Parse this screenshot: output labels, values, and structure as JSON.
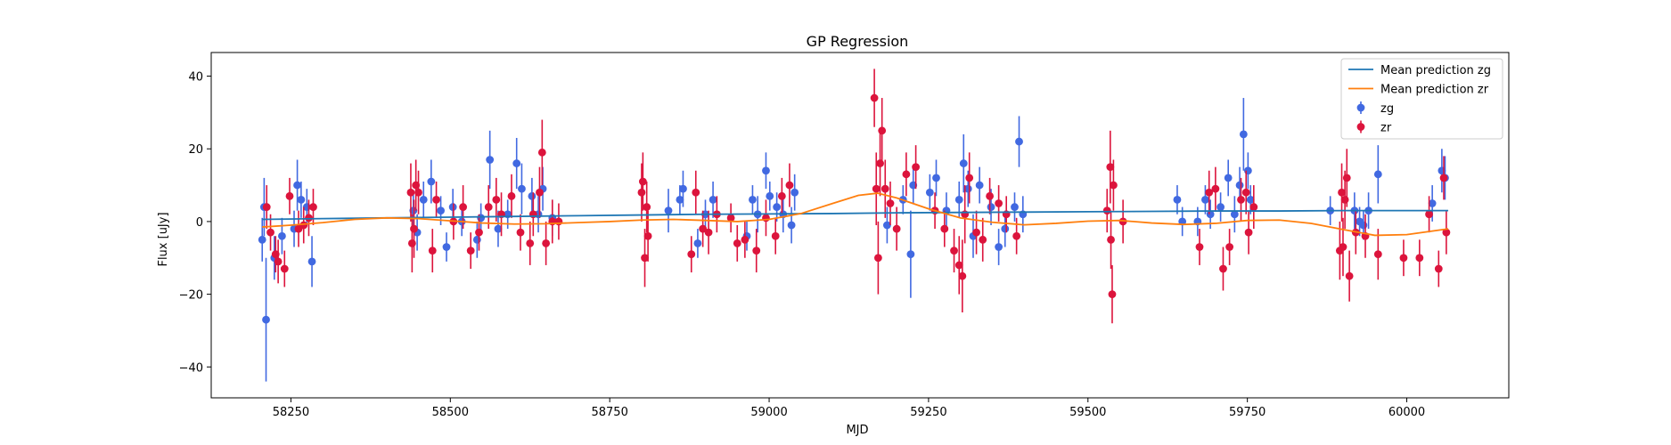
{
  "chart_data": {
    "type": "scatter",
    "title": "GP Regression",
    "xlabel": "MJD",
    "ylabel": "Flux [uJy]",
    "xlim": [
      58125,
      60160
    ],
    "ylim": [
      -48.5,
      46.5
    ],
    "xticks": [
      58250,
      58500,
      58750,
      59000,
      59250,
      59500,
      59750,
      60000
    ],
    "yticks": [
      -40,
      -20,
      0,
      20,
      40
    ],
    "legend_position": "top-right",
    "legend": [
      {
        "label": "Mean prediction zg",
        "kind": "line",
        "color": "#1f77b4"
      },
      {
        "label": "Mean prediction zr",
        "kind": "line",
        "color": "#ff7f0e"
      },
      {
        "label": "zg",
        "kind": "errorbar",
        "color": "#4169e1"
      },
      {
        "label": "zr",
        "kind": "errorbar",
        "color": "#dc143c"
      }
    ],
    "mean_zg": {
      "name": "Mean prediction zg",
      "color": "#1f77b4",
      "x": [
        58205,
        58300,
        58400,
        58500,
        58600,
        58700,
        58800,
        58900,
        59000,
        59100,
        59200,
        59300,
        59400,
        59500,
        59600,
        59700,
        59800,
        59900,
        60000,
        60065
      ],
      "y": [
        0.6,
        0.8,
        1.0,
        1.2,
        1.4,
        1.6,
        1.8,
        2.0,
        2.1,
        2.2,
        2.4,
        2.5,
        2.6,
        2.7,
        2.8,
        2.9,
        2.9,
        3.0,
        3.0,
        3.0
      ]
    },
    "mean_zr": {
      "name": "Mean prediction zr",
      "color": "#ff7f0e",
      "x": [
        58205,
        58250,
        58300,
        58350,
        58400,
        58450,
        58500,
        58550,
        58600,
        58650,
        58700,
        58750,
        58800,
        58850,
        58900,
        58950,
        59000,
        59050,
        59100,
        59140,
        59170,
        59200,
        59250,
        59300,
        59350,
        59400,
        59450,
        59500,
        59550,
        59600,
        59650,
        59700,
        59750,
        59800,
        59850,
        59900,
        59950,
        60000,
        60065
      ],
      "y": [
        -1.5,
        -1.0,
        -0.3,
        0.6,
        1.0,
        0.8,
        0.2,
        -0.4,
        -0.7,
        -0.6,
        -0.3,
        0.0,
        0.4,
        0.6,
        0.3,
        0.0,
        0.6,
        2.2,
        5.0,
        7.2,
        7.8,
        6.5,
        3.5,
        1.0,
        -0.2,
        -0.9,
        -0.5,
        0.1,
        0.3,
        -0.4,
        -0.8,
        -0.5,
        0.3,
        0.4,
        -0.5,
        -2.2,
        -3.8,
        -3.6,
        -2.0
      ]
    },
    "series": [
      {
        "name": "zg",
        "color": "#4169e1",
        "points": [
          [
            58205,
            -5,
            6
          ],
          [
            58208,
            4,
            8
          ],
          [
            58211,
            -27,
            17
          ],
          [
            58224,
            -10,
            6
          ],
          [
            58236,
            -4,
            5
          ],
          [
            58255,
            -2,
            5
          ],
          [
            58260,
            10,
            7
          ],
          [
            58266,
            6,
            5
          ],
          [
            58275,
            4,
            5
          ],
          [
            58283,
            -11,
            7
          ],
          [
            58442,
            3,
            5
          ],
          [
            58448,
            -3,
            5
          ],
          [
            58458,
            6,
            5
          ],
          [
            58470,
            11,
            6
          ],
          [
            58485,
            3,
            4
          ],
          [
            58494,
            -7,
            4
          ],
          [
            58504,
            4,
            5
          ],
          [
            58518,
            0,
            4
          ],
          [
            58542,
            -5,
            5
          ],
          [
            58548,
            1,
            4
          ],
          [
            58562,
            17,
            8
          ],
          [
            58575,
            -2,
            5
          ],
          [
            58590,
            2,
            4
          ],
          [
            58604,
            16,
            7
          ],
          [
            58612,
            9,
            7
          ],
          [
            58628,
            7,
            5
          ],
          [
            58638,
            2,
            5
          ],
          [
            58645,
            9,
            6
          ],
          [
            58660,
            1,
            5
          ],
          [
            58842,
            3,
            6
          ],
          [
            58860,
            6,
            4
          ],
          [
            58865,
            9,
            5
          ],
          [
            58888,
            -6,
            4
          ],
          [
            58900,
            2,
            4
          ],
          [
            58912,
            6,
            5
          ],
          [
            58965,
            -4,
            4
          ],
          [
            58974,
            6,
            4
          ],
          [
            58982,
            2,
            5
          ],
          [
            58995,
            14,
            5
          ],
          [
            59001,
            7,
            4
          ],
          [
            59012,
            4,
            4
          ],
          [
            59022,
            2,
            5
          ],
          [
            59035,
            -1,
            5
          ],
          [
            59040,
            8,
            5
          ],
          [
            59185,
            -1,
            5
          ],
          [
            59210,
            6,
            4
          ],
          [
            59222,
            -9,
            12
          ],
          [
            59226,
            10,
            5
          ],
          [
            59252,
            8,
            5
          ],
          [
            59262,
            12,
            5
          ],
          [
            59278,
            3,
            5
          ],
          [
            59298,
            6,
            5
          ],
          [
            59305,
            16,
            8
          ],
          [
            59312,
            9,
            5
          ],
          [
            59320,
            -4,
            6
          ],
          [
            59330,
            10,
            5
          ],
          [
            59348,
            4,
            5
          ],
          [
            59360,
            -7,
            5
          ],
          [
            59370,
            -2,
            5
          ],
          [
            59385,
            4,
            4
          ],
          [
            59392,
            22,
            7
          ],
          [
            59398,
            2,
            5
          ],
          [
            59640,
            6,
            4
          ],
          [
            59648,
            0,
            4
          ],
          [
            59672,
            0,
            4
          ],
          [
            59684,
            6,
            4
          ],
          [
            59692,
            2,
            4
          ],
          [
            59708,
            4,
            4
          ],
          [
            59720,
            12,
            5
          ],
          [
            59730,
            2,
            5
          ],
          [
            59738,
            10,
            5
          ],
          [
            59744,
            24,
            10
          ],
          [
            59751,
            14,
            5
          ],
          [
            59755,
            6,
            4
          ],
          [
            59880,
            3,
            4
          ],
          [
            59918,
            3,
            5
          ],
          [
            59926,
            0,
            4
          ],
          [
            59932,
            -1,
            4
          ],
          [
            59940,
            3,
            5
          ],
          [
            59955,
            13,
            8
          ],
          [
            60040,
            5,
            5
          ],
          [
            60055,
            14,
            6
          ],
          [
            60060,
            12,
            6
          ]
        ]
      },
      {
        "name": "zr",
        "color": "#dc143c",
        "points": [
          [
            58212,
            4,
            6
          ],
          [
            58218,
            -3,
            5
          ],
          [
            58226,
            -9,
            5
          ],
          [
            58230,
            -11,
            6
          ],
          [
            58240,
            -13,
            5
          ],
          [
            58248,
            7,
            5
          ],
          [
            58262,
            -2,
            5
          ],
          [
            58270,
            -1,
            5
          ],
          [
            58278,
            1,
            5
          ],
          [
            58285,
            4,
            5
          ],
          [
            58438,
            8,
            8
          ],
          [
            58440,
            -6,
            8
          ],
          [
            58443,
            -2,
            8
          ],
          [
            58446,
            10,
            7
          ],
          [
            58450,
            8,
            6
          ],
          [
            58472,
            -8,
            6
          ],
          [
            58478,
            6,
            5
          ],
          [
            58505,
            0,
            5
          ],
          [
            58520,
            4,
            6
          ],
          [
            58532,
            -8,
            5
          ],
          [
            58545,
            -3,
            5
          ],
          [
            58560,
            4,
            6
          ],
          [
            58572,
            6,
            6
          ],
          [
            58580,
            2,
            6
          ],
          [
            58596,
            7,
            6
          ],
          [
            58610,
            -3,
            5
          ],
          [
            58625,
            -6,
            6
          ],
          [
            58630,
            2,
            6
          ],
          [
            58640,
            8,
            7
          ],
          [
            58644,
            19,
            9
          ],
          [
            58650,
            -6,
            6
          ],
          [
            58660,
            0,
            6
          ],
          [
            58670,
            0,
            5
          ],
          [
            58800,
            8,
            8
          ],
          [
            58802,
            11,
            8
          ],
          [
            58805,
            -10,
            8
          ],
          [
            58808,
            4,
            7
          ],
          [
            58810,
            -4,
            7
          ],
          [
            58878,
            -9,
            5
          ],
          [
            58885,
            8,
            6
          ],
          [
            58896,
            -2,
            5
          ],
          [
            58905,
            -3,
            6
          ],
          [
            58918,
            2,
            5
          ],
          [
            58940,
            1,
            4
          ],
          [
            58950,
            -6,
            5
          ],
          [
            58962,
            -5,
            5
          ],
          [
            58980,
            -8,
            6
          ],
          [
            58995,
            1,
            5
          ],
          [
            59010,
            -4,
            5
          ],
          [
            59020,
            7,
            5
          ],
          [
            59032,
            10,
            6
          ],
          [
            59165,
            34,
            8
          ],
          [
            59168,
            9,
            10
          ],
          [
            59171,
            -10,
            10
          ],
          [
            59174,
            16,
            9
          ],
          [
            59177,
            25,
            9
          ],
          [
            59182,
            9,
            8
          ],
          [
            59190,
            5,
            6
          ],
          [
            59200,
            -2,
            6
          ],
          [
            59215,
            13,
            6
          ],
          [
            59230,
            15,
            6
          ],
          [
            59260,
            3,
            5
          ],
          [
            59275,
            -2,
            5
          ],
          [
            59290,
            -8,
            6
          ],
          [
            59298,
            -12,
            8
          ],
          [
            59303,
            -15,
            10
          ],
          [
            59307,
            2,
            8
          ],
          [
            59314,
            12,
            7
          ],
          [
            59325,
            -3,
            6
          ],
          [
            59335,
            -5,
            6
          ],
          [
            59346,
            7,
            5
          ],
          [
            59360,
            5,
            5
          ],
          [
            59372,
            2,
            5
          ],
          [
            59388,
            -4,
            5
          ],
          [
            59530,
            3,
            6
          ],
          [
            59535,
            15,
            10
          ],
          [
            59536,
            -5,
            8
          ],
          [
            59538,
            -20,
            8
          ],
          [
            59540,
            10,
            7
          ],
          [
            59555,
            0,
            6
          ],
          [
            59675,
            -7,
            5
          ],
          [
            59690,
            8,
            6
          ],
          [
            59700,
            9,
            6
          ],
          [
            59712,
            -13,
            6
          ],
          [
            59722,
            -7,
            5
          ],
          [
            59740,
            6,
            6
          ],
          [
            59748,
            8,
            6
          ],
          [
            59752,
            -3,
            6
          ],
          [
            59760,
            4,
            6
          ],
          [
            59895,
            -8,
            8
          ],
          [
            59898,
            8,
            8
          ],
          [
            59900,
            -7,
            8
          ],
          [
            59903,
            6,
            8
          ],
          [
            59906,
            12,
            8
          ],
          [
            59910,
            -15,
            7
          ],
          [
            59920,
            -3,
            6
          ],
          [
            59935,
            -4,
            6
          ],
          [
            59955,
            -9,
            7
          ],
          [
            59995,
            -10,
            5
          ],
          [
            60020,
            -10,
            5
          ],
          [
            60035,
            2,
            5
          ],
          [
            60050,
            -13,
            5
          ],
          [
            60058,
            12,
            6
          ],
          [
            60062,
            -3,
            6
          ]
        ]
      }
    ]
  }
}
